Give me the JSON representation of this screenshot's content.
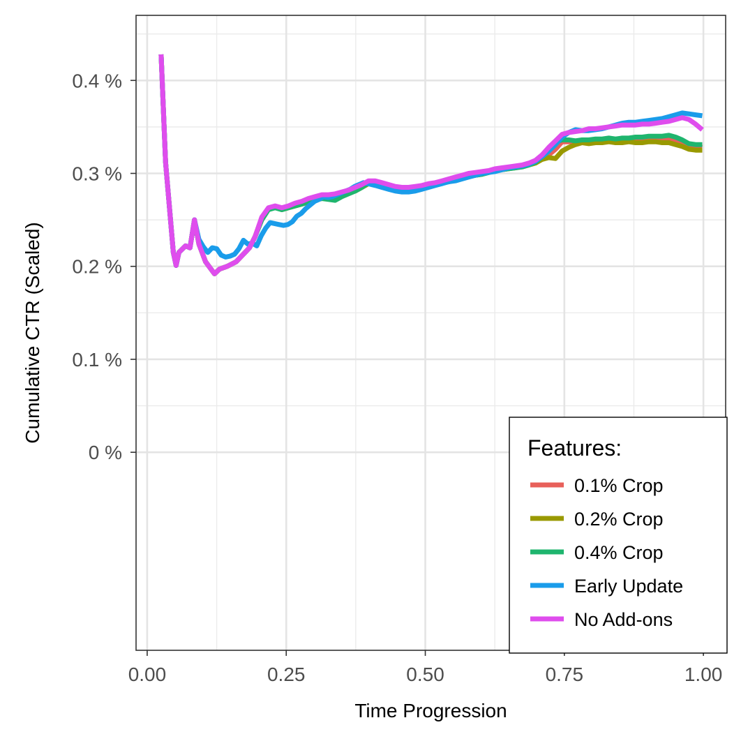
{
  "chart_data": {
    "type": "line",
    "title": "",
    "xlabel": "Time Progression",
    "ylabel": "Cumulative CTR (Scaled)",
    "xlim": [
      -0.02,
      1.04
    ],
    "ylim": [
      -0.00213,
      0.0047
    ],
    "x_ticks": [
      0,
      0.25,
      0.5,
      0.75,
      1
    ],
    "x_tick_labels": [
      "0.00",
      "0.25",
      "0.50",
      "0.75",
      "1.00"
    ],
    "y_ticks": [
      0,
      0.001,
      0.002,
      0.003,
      0.004
    ],
    "y_tick_labels": [
      "0 %",
      "0.1 %",
      "0.2 %",
      "0.3 %",
      "0.4 %"
    ],
    "grid": true,
    "legend": {
      "title": "Features:",
      "position": "bottom-right inside"
    },
    "series": [
      {
        "name": "0.1% Crop",
        "color": "#e8605a",
        "x": [
          0.025,
          0.033,
          0.047,
          0.052,
          0.057,
          0.069,
          0.077,
          0.085,
          0.093,
          0.105,
          0.121,
          0.13,
          0.144,
          0.16,
          0.176,
          0.184,
          0.194,
          0.206,
          0.218,
          0.23,
          0.242,
          0.254,
          0.266,
          0.278,
          0.29,
          0.302,
          0.314,
          0.326,
          0.338,
          0.35,
          0.362,
          0.374,
          0.386,
          0.398,
          0.41,
          0.422,
          0.434,
          0.446,
          0.458,
          0.47,
          0.482,
          0.494,
          0.506,
          0.518,
          0.53,
          0.542,
          0.554,
          0.566,
          0.578,
          0.59,
          0.602,
          0.614,
          0.626,
          0.638,
          0.65,
          0.662,
          0.674,
          0.686,
          0.698,
          0.71,
          0.722,
          0.734,
          0.746,
          0.758,
          0.77,
          0.782,
          0.794,
          0.806,
          0.818,
          0.83,
          0.842,
          0.854,
          0.866,
          0.878,
          0.89,
          0.902,
          0.914,
          0.926,
          0.938,
          0.95,
          0.962,
          0.974,
          0.986,
          0.998
        ],
        "y": [
          0.00428,
          0.00312,
          0.00215,
          0.00201,
          0.00215,
          0.00222,
          0.0022,
          0.0025,
          0.00224,
          0.00205,
          0.00192,
          0.00197,
          0.002,
          0.00205,
          0.00215,
          0.0022,
          0.00232,
          0.00252,
          0.00262,
          0.00264,
          0.00262,
          0.00264,
          0.00266,
          0.00268,
          0.0027,
          0.00272,
          0.00274,
          0.00274,
          0.00276,
          0.00278,
          0.0028,
          0.00282,
          0.00286,
          0.0029,
          0.00291,
          0.00289,
          0.00287,
          0.00285,
          0.00284,
          0.00284,
          0.00285,
          0.00286,
          0.00288,
          0.00289,
          0.00291,
          0.00292,
          0.00294,
          0.00296,
          0.00298,
          0.00299,
          0.003,
          0.00302,
          0.00304,
          0.00305,
          0.00306,
          0.00307,
          0.00308,
          0.0031,
          0.00312,
          0.00316,
          0.0032,
          0.00326,
          0.00334,
          0.00334,
          0.00334,
          0.00334,
          0.00334,
          0.00335,
          0.00334,
          0.00335,
          0.00335,
          0.00335,
          0.00336,
          0.00336,
          0.00336,
          0.00336,
          0.00337,
          0.00337,
          0.00337,
          0.00336,
          0.00334,
          0.00331,
          0.00329,
          0.00328
        ]
      },
      {
        "name": "0.2% Crop",
        "color": "#999900",
        "x": [
          0.025,
          0.033,
          0.047,
          0.052,
          0.057,
          0.069,
          0.077,
          0.085,
          0.093,
          0.105,
          0.121,
          0.13,
          0.144,
          0.16,
          0.176,
          0.184,
          0.194,
          0.206,
          0.218,
          0.23,
          0.242,
          0.254,
          0.266,
          0.278,
          0.29,
          0.302,
          0.314,
          0.326,
          0.338,
          0.35,
          0.362,
          0.374,
          0.386,
          0.398,
          0.41,
          0.422,
          0.434,
          0.446,
          0.458,
          0.47,
          0.482,
          0.494,
          0.506,
          0.518,
          0.53,
          0.542,
          0.554,
          0.566,
          0.578,
          0.59,
          0.602,
          0.614,
          0.626,
          0.638,
          0.65,
          0.662,
          0.674,
          0.686,
          0.698,
          0.71,
          0.722,
          0.734,
          0.746,
          0.758,
          0.77,
          0.782,
          0.794,
          0.806,
          0.818,
          0.83,
          0.842,
          0.854,
          0.866,
          0.878,
          0.89,
          0.902,
          0.914,
          0.926,
          0.938,
          0.95,
          0.962,
          0.974,
          0.986,
          0.998
        ],
        "y": [
          0.00428,
          0.00312,
          0.00215,
          0.00201,
          0.00215,
          0.00222,
          0.0022,
          0.0025,
          0.00224,
          0.00205,
          0.00192,
          0.00197,
          0.002,
          0.00205,
          0.00215,
          0.0022,
          0.00232,
          0.00252,
          0.00262,
          0.00264,
          0.00261,
          0.00263,
          0.00265,
          0.00267,
          0.00269,
          0.00271,
          0.00273,
          0.00273,
          0.00275,
          0.00277,
          0.00279,
          0.00281,
          0.00285,
          0.00289,
          0.0029,
          0.00288,
          0.00286,
          0.00284,
          0.00283,
          0.00283,
          0.00284,
          0.00285,
          0.00287,
          0.00288,
          0.0029,
          0.00291,
          0.00293,
          0.00295,
          0.00297,
          0.00298,
          0.00299,
          0.00301,
          0.00303,
          0.00304,
          0.00305,
          0.00306,
          0.00307,
          0.00309,
          0.00311,
          0.00315,
          0.00317,
          0.00316,
          0.00324,
          0.00328,
          0.00331,
          0.00333,
          0.00332,
          0.00333,
          0.00333,
          0.00334,
          0.00333,
          0.00333,
          0.00334,
          0.00333,
          0.00333,
          0.00334,
          0.00334,
          0.00333,
          0.00333,
          0.00331,
          0.00329,
          0.00326,
          0.00325,
          0.00325
        ]
      },
      {
        "name": "0.4% Crop",
        "color": "#1fb56e",
        "x": [
          0.025,
          0.033,
          0.047,
          0.052,
          0.057,
          0.069,
          0.077,
          0.085,
          0.093,
          0.105,
          0.121,
          0.13,
          0.144,
          0.16,
          0.176,
          0.184,
          0.194,
          0.206,
          0.218,
          0.23,
          0.242,
          0.254,
          0.266,
          0.278,
          0.29,
          0.302,
          0.314,
          0.326,
          0.338,
          0.35,
          0.362,
          0.374,
          0.386,
          0.398,
          0.41,
          0.422,
          0.434,
          0.446,
          0.458,
          0.47,
          0.482,
          0.494,
          0.506,
          0.518,
          0.53,
          0.542,
          0.554,
          0.566,
          0.578,
          0.59,
          0.602,
          0.614,
          0.626,
          0.638,
          0.65,
          0.662,
          0.674,
          0.686,
          0.698,
          0.71,
          0.722,
          0.734,
          0.746,
          0.758,
          0.77,
          0.782,
          0.794,
          0.806,
          0.818,
          0.83,
          0.842,
          0.854,
          0.866,
          0.878,
          0.89,
          0.902,
          0.914,
          0.926,
          0.938,
          0.95,
          0.962,
          0.974,
          0.986,
          0.998
        ],
        "y": [
          0.00428,
          0.00312,
          0.00215,
          0.00201,
          0.00215,
          0.00222,
          0.0022,
          0.0025,
          0.00224,
          0.00205,
          0.00192,
          0.00197,
          0.002,
          0.00205,
          0.00215,
          0.0022,
          0.00232,
          0.0025,
          0.00261,
          0.00263,
          0.00261,
          0.00263,
          0.00265,
          0.00267,
          0.0027,
          0.00272,
          0.00273,
          0.00272,
          0.00271,
          0.00275,
          0.00278,
          0.00281,
          0.00285,
          0.0029,
          0.0029,
          0.00288,
          0.00286,
          0.00284,
          0.00283,
          0.00283,
          0.00284,
          0.00285,
          0.00287,
          0.00288,
          0.0029,
          0.00291,
          0.00293,
          0.00295,
          0.00297,
          0.00298,
          0.00299,
          0.00301,
          0.00303,
          0.00304,
          0.00305,
          0.00306,
          0.00307,
          0.00309,
          0.00312,
          0.00318,
          0.00327,
          0.00334,
          0.00336,
          0.00336,
          0.00335,
          0.00336,
          0.00336,
          0.00337,
          0.00337,
          0.00338,
          0.00337,
          0.00338,
          0.00338,
          0.00339,
          0.00339,
          0.0034,
          0.0034,
          0.0034,
          0.00341,
          0.00339,
          0.00336,
          0.00332,
          0.00331,
          0.00331
        ]
      },
      {
        "name": "Early Update",
        "color": "#1a9cea",
        "x": [
          0.025,
          0.033,
          0.047,
          0.052,
          0.057,
          0.069,
          0.077,
          0.085,
          0.093,
          0.101,
          0.109,
          0.117,
          0.125,
          0.133,
          0.141,
          0.149,
          0.157,
          0.165,
          0.173,
          0.181,
          0.189,
          0.197,
          0.205,
          0.213,
          0.221,
          0.229,
          0.237,
          0.245,
          0.253,
          0.261,
          0.269,
          0.277,
          0.285,
          0.293,
          0.301,
          0.309,
          0.317,
          0.325,
          0.333,
          0.341,
          0.349,
          0.357,
          0.365,
          0.373,
          0.381,
          0.389,
          0.397,
          0.41,
          0.422,
          0.434,
          0.446,
          0.458,
          0.47,
          0.482,
          0.494,
          0.506,
          0.518,
          0.53,
          0.542,
          0.554,
          0.566,
          0.578,
          0.59,
          0.602,
          0.614,
          0.626,
          0.638,
          0.65,
          0.662,
          0.674,
          0.686,
          0.698,
          0.71,
          0.722,
          0.734,
          0.746,
          0.758,
          0.77,
          0.782,
          0.794,
          0.806,
          0.818,
          0.83,
          0.842,
          0.854,
          0.866,
          0.878,
          0.89,
          0.902,
          0.914,
          0.926,
          0.938,
          0.95,
          0.962,
          0.974,
          0.986,
          0.998
        ],
        "y": [
          0.00428,
          0.00312,
          0.00215,
          0.00201,
          0.00215,
          0.00222,
          0.0022,
          0.0025,
          0.00229,
          0.00221,
          0.00215,
          0.0022,
          0.00219,
          0.00212,
          0.0021,
          0.00211,
          0.00213,
          0.00219,
          0.00228,
          0.00224,
          0.00225,
          0.00222,
          0.00233,
          0.00241,
          0.00247,
          0.00246,
          0.00245,
          0.00244,
          0.00245,
          0.00248,
          0.00254,
          0.00257,
          0.00262,
          0.00266,
          0.0027,
          0.00272,
          0.00275,
          0.00274,
          0.00275,
          0.00277,
          0.00279,
          0.00281,
          0.00283,
          0.00286,
          0.00288,
          0.0029,
          0.00289,
          0.00287,
          0.00285,
          0.00283,
          0.00281,
          0.0028,
          0.0028,
          0.00281,
          0.00283,
          0.00285,
          0.00287,
          0.00289,
          0.00291,
          0.00292,
          0.00294,
          0.00296,
          0.00298,
          0.003,
          0.00301,
          0.00302,
          0.00304,
          0.00306,
          0.00307,
          0.00308,
          0.0031,
          0.00313,
          0.00318,
          0.00324,
          0.00331,
          0.00339,
          0.00344,
          0.00347,
          0.00346,
          0.00346,
          0.00347,
          0.00348,
          0.0035,
          0.00352,
          0.00354,
          0.00355,
          0.00355,
          0.00356,
          0.00357,
          0.00358,
          0.00359,
          0.00361,
          0.00363,
          0.00365,
          0.00364,
          0.00363,
          0.00362
        ]
      },
      {
        "name": "No Add-ons",
        "color": "#df4ded",
        "x": [
          0.025,
          0.033,
          0.047,
          0.052,
          0.057,
          0.069,
          0.077,
          0.085,
          0.093,
          0.105,
          0.121,
          0.13,
          0.144,
          0.16,
          0.176,
          0.184,
          0.194,
          0.206,
          0.218,
          0.23,
          0.242,
          0.254,
          0.266,
          0.278,
          0.29,
          0.302,
          0.314,
          0.326,
          0.338,
          0.35,
          0.362,
          0.374,
          0.386,
          0.398,
          0.41,
          0.422,
          0.434,
          0.446,
          0.458,
          0.47,
          0.482,
          0.494,
          0.506,
          0.518,
          0.53,
          0.542,
          0.554,
          0.566,
          0.578,
          0.59,
          0.602,
          0.614,
          0.626,
          0.638,
          0.65,
          0.662,
          0.674,
          0.686,
          0.698,
          0.71,
          0.722,
          0.734,
          0.746,
          0.758,
          0.77,
          0.782,
          0.794,
          0.806,
          0.818,
          0.83,
          0.842,
          0.854,
          0.866,
          0.878,
          0.89,
          0.902,
          0.914,
          0.926,
          0.938,
          0.95,
          0.962,
          0.974,
          0.986,
          0.998
        ],
        "y": [
          0.00428,
          0.00312,
          0.00215,
          0.00201,
          0.00215,
          0.00222,
          0.0022,
          0.0025,
          0.00224,
          0.00205,
          0.00192,
          0.00197,
          0.002,
          0.00205,
          0.00215,
          0.0022,
          0.00232,
          0.00253,
          0.00263,
          0.00265,
          0.00263,
          0.00265,
          0.00268,
          0.0027,
          0.00273,
          0.00275,
          0.00277,
          0.00277,
          0.00278,
          0.0028,
          0.00282,
          0.00285,
          0.00288,
          0.00292,
          0.00292,
          0.0029,
          0.00288,
          0.00286,
          0.00285,
          0.00285,
          0.00286,
          0.00287,
          0.00289,
          0.0029,
          0.00292,
          0.00294,
          0.00296,
          0.00298,
          0.003,
          0.00301,
          0.00302,
          0.00303,
          0.00305,
          0.00306,
          0.00307,
          0.00308,
          0.00309,
          0.00311,
          0.00314,
          0.0032,
          0.00328,
          0.00335,
          0.00342,
          0.00344,
          0.00345,
          0.00346,
          0.00348,
          0.00348,
          0.00349,
          0.0035,
          0.00351,
          0.00352,
          0.00352,
          0.00352,
          0.00353,
          0.00353,
          0.00354,
          0.00355,
          0.00356,
          0.00358,
          0.0036,
          0.00358,
          0.00353,
          0.00347
        ]
      }
    ]
  }
}
